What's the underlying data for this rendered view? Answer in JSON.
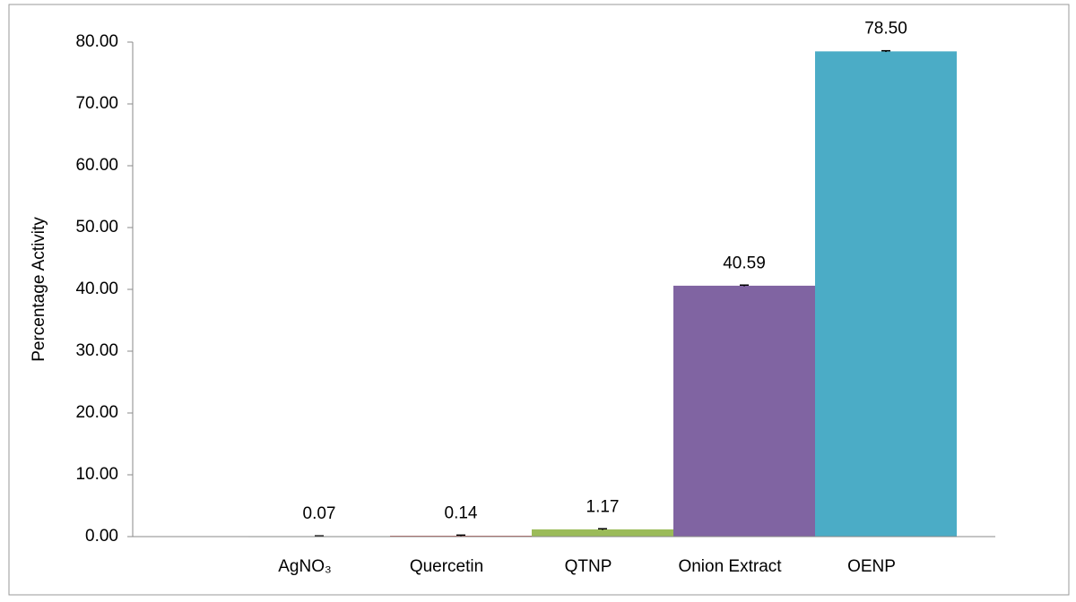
{
  "chart_data": {
    "type": "bar",
    "y_label": "Percentage Activity",
    "categories": [
      "AgNO₃",
      "Quercetin",
      "QTNP",
      "Onion Extract",
      "OENP"
    ],
    "values": [
      0.07,
      0.14,
      1.17,
      40.59,
      78.5
    ],
    "value_labels": [
      "0.07",
      "0.14",
      "1.17",
      "40.59",
      "78.50"
    ],
    "errors": [
      0.05,
      0.1,
      0.1,
      0.1,
      0.1
    ],
    "colors": [
      "#2e8b7a",
      "#c0504d",
      "#9bbb59",
      "#8064a2",
      "#4bacc6"
    ],
    "ylim": [
      0,
      80
    ],
    "yticks": [
      {
        "value": 0,
        "label": "0.00"
      },
      {
        "value": 10,
        "label": "10.00"
      },
      {
        "value": 20,
        "label": "20.00"
      },
      {
        "value": 30,
        "label": "30.00"
      },
      {
        "value": 40,
        "label": "40.00"
      },
      {
        "value": 50,
        "label": "50.00"
      },
      {
        "value": 60,
        "label": "60.00"
      },
      {
        "value": 70,
        "label": "70.00"
      },
      {
        "value": 80,
        "label": "80.00"
      }
    ],
    "grid": false
  }
}
